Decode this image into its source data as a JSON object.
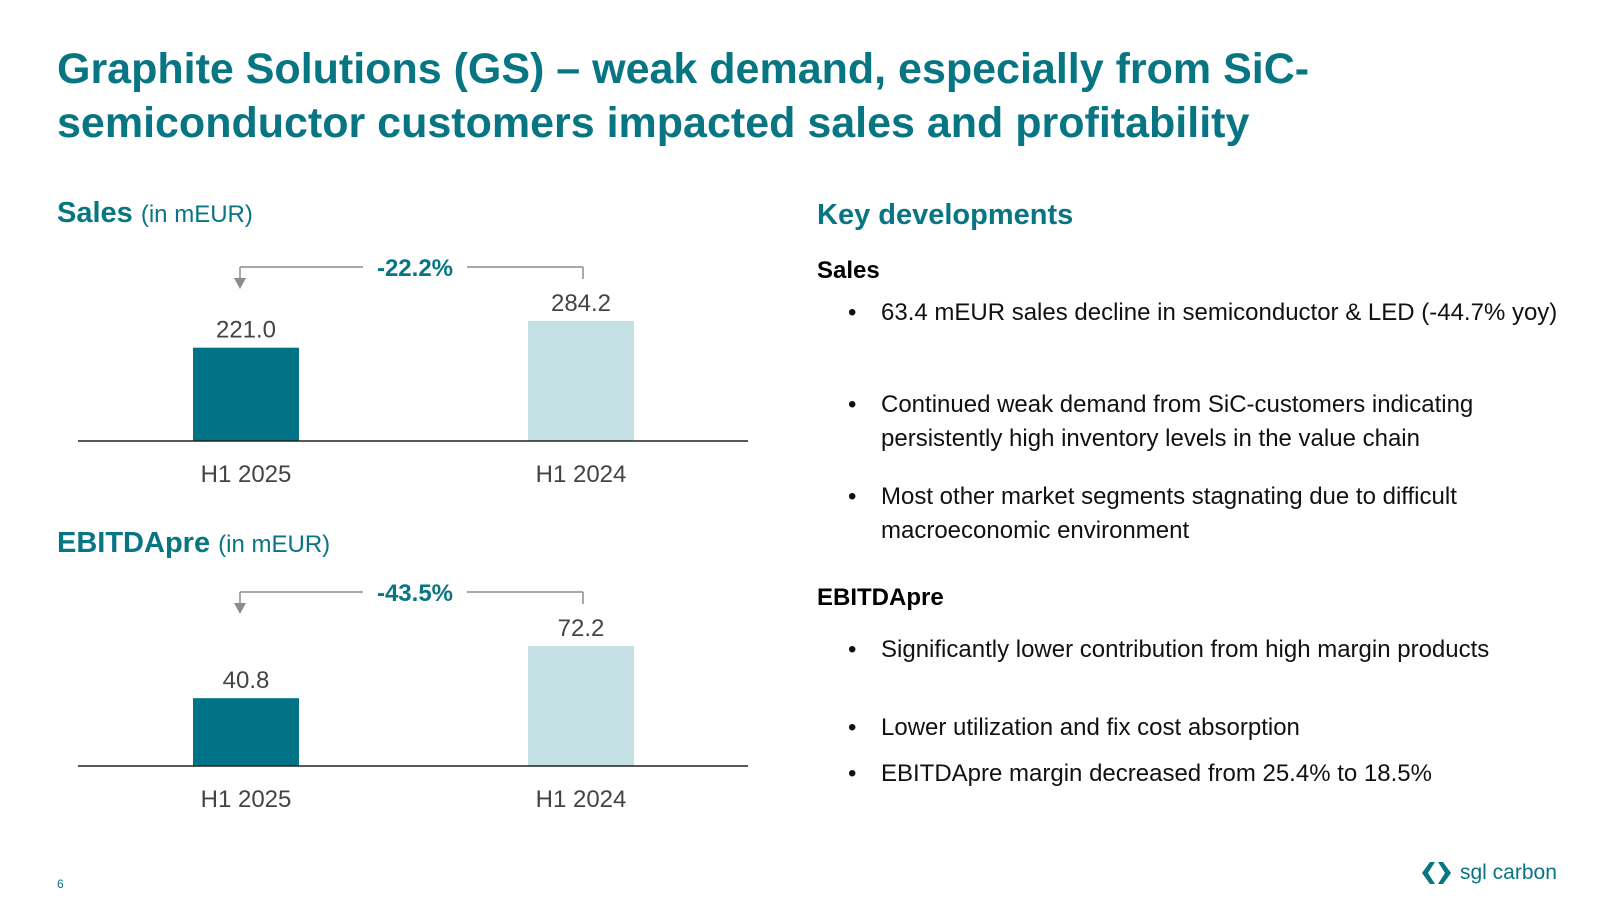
{
  "title": "Graphite Solutions (GS) – weak demand, especially from SiC-semiconductor customers impacted sales and profitability",
  "colors": {
    "accent": "#087583",
    "current": "#007386",
    "prior": "#c5e1e6",
    "arrow": "#8c8c8c"
  },
  "page_number": "6",
  "logo": {
    "icon": "sgl-chevrons-icon",
    "text": "sgl carbon"
  },
  "chart_data": [
    {
      "type": "bar",
      "title": "Sales",
      "unit_label": "(in mEUR)",
      "categories": [
        "H1 2025",
        "H1 2024"
      ],
      "values": [
        221.0,
        284.2
      ],
      "value_labels": [
        "221.0",
        "284.2"
      ],
      "change_label": "-22.2%",
      "ylim": [
        0,
        284.2
      ]
    },
    {
      "type": "bar",
      "title": "EBITDApre",
      "unit_label": "(in mEUR)",
      "categories": [
        "H1 2025",
        "H1 2024"
      ],
      "values": [
        40.8,
        72.2
      ],
      "value_labels": [
        "40.8",
        "72.2"
      ],
      "change_label": "-43.5%",
      "ylim": [
        0,
        72.2
      ]
    }
  ],
  "key_developments": {
    "heading": "Key developments",
    "sales": {
      "heading": "Sales",
      "bullets": [
        "63.4 mEUR sales decline in semiconductor & LED (-44.7% yoy)",
        "Continued weak demand from SiC-customers indicating persistently high inventory levels in the value chain",
        "Most other market segments stagnating due to difficult macroeconomic environment"
      ]
    },
    "ebitda": {
      "heading": "EBITDApre",
      "bullets": [
        "Significantly lower contribution from high margin products",
        "Lower utilization and fix cost absorption",
        "EBITDApre margin decreased from 25.4% to 18.5%"
      ]
    }
  }
}
